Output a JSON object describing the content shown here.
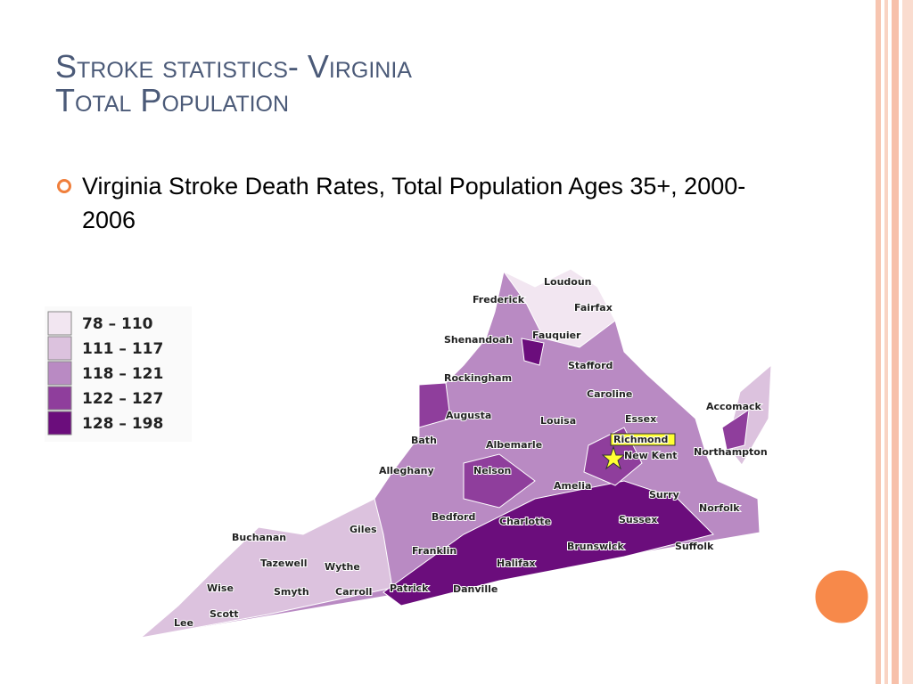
{
  "header": {
    "title_line1": "Stroke statistics- Virginia",
    "title_line2": "Total Population"
  },
  "bullet": {
    "text": "Virginia Stroke Death Rates, Total Population Ages 35+, 2000-2006"
  },
  "legend": {
    "items": [
      {
        "label": "78 – 110",
        "color": "#f2e6f1"
      },
      {
        "label": "111 – 117",
        "color": "#dcc2de"
      },
      {
        "label": "118 – 121",
        "color": "#b98ac3"
      },
      {
        "label": "122 – 127",
        "color": "#8f3e9c"
      },
      {
        "label": "128 – 198",
        "color": "#6b0d7c"
      }
    ]
  },
  "map": {
    "labels": [
      "Loudoun",
      "Frederick",
      "Fairfax",
      "Shenandoah",
      "Fauquier",
      "Stafford",
      "Rockingham",
      "Caroline",
      "Accomack",
      "Augusta",
      "Louisa",
      "Essex",
      "Richmond",
      "New Kent",
      "Northampton",
      "Bath",
      "Albemarle",
      "Alleghany",
      "Nelson",
      "Amelia",
      "Surry",
      "Norfolk",
      "Bedford",
      "Charlotte",
      "Sussex",
      "Buchanan",
      "Giles",
      "Suffolk",
      "Franklin",
      "Brunswick",
      "Tazewell",
      "Wythe",
      "Halifax",
      "Wise",
      "Smyth",
      "Carroll",
      "Patrick",
      "Danville",
      "Scott",
      "Lee"
    ]
  }
}
